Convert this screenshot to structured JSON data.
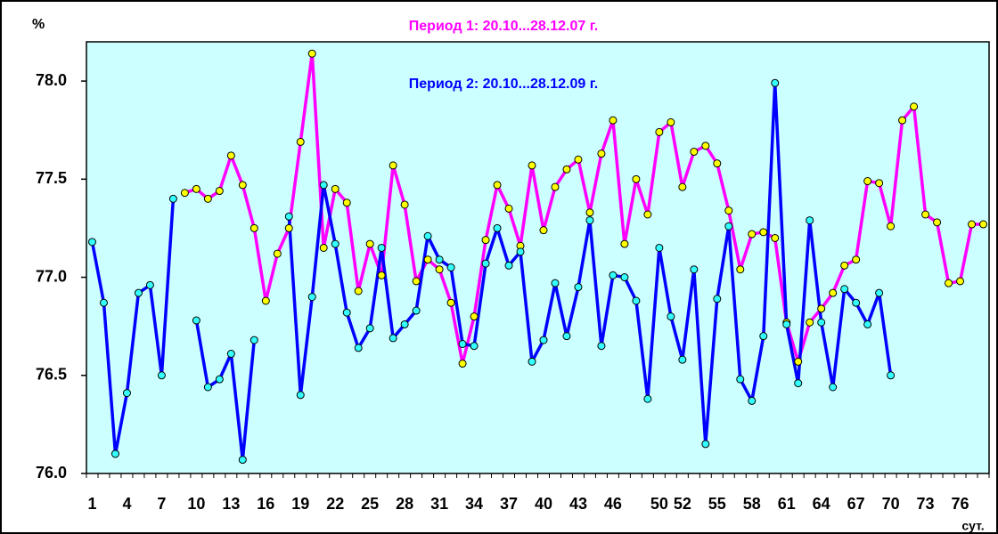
{
  "chart_data": {
    "type": "line",
    "y_unit_label": "%",
    "x_unit_label": "сут.",
    "categories": [
      "1",
      null,
      null,
      "4",
      null,
      null,
      "7",
      null,
      null,
      "10",
      null,
      null,
      "13",
      null,
      null,
      "16",
      null,
      null,
      "19",
      null,
      null,
      "22",
      null,
      null,
      "25",
      null,
      null,
      "28",
      null,
      null,
      "31",
      null,
      null,
      "34",
      null,
      null,
      "37",
      null,
      null,
      "40",
      null,
      null,
      "43",
      null,
      null,
      "46",
      null,
      null,
      null,
      "50",
      null,
      "52",
      null,
      null,
      "55",
      null,
      null,
      "58",
      null,
      null,
      "61",
      null,
      null,
      "64",
      null,
      null,
      "67",
      null,
      null,
      "70",
      null,
      null,
      "73",
      null,
      null,
      "76",
      null,
      null
    ],
    "series": [
      {
        "name": "Период 1: 20.10...28.12.07 г.",
        "color": "#ff00ff",
        "marker_color": "#ffff00",
        "values": [
          null,
          null,
          null,
          null,
          null,
          null,
          null,
          null,
          77.43,
          77.45,
          77.4,
          77.44,
          77.62,
          77.47,
          77.25,
          76.88,
          77.12,
          77.25,
          77.69,
          78.14,
          77.15,
          77.45,
          77.38,
          76.93,
          77.17,
          77.01,
          77.57,
          77.37,
          76.98,
          77.09,
          77.04,
          76.87,
          76.56,
          76.8,
          77.19,
          77.47,
          77.35,
          77.16,
          77.57,
          77.24,
          77.46,
          77.55,
          77.6,
          77.33,
          77.63,
          77.8,
          77.17,
          77.5,
          77.32,
          77.74,
          77.79,
          77.46,
          77.64,
          77.67,
          77.58,
          77.34,
          77.04,
          77.22,
          77.23,
          77.2,
          76.77,
          76.57,
          76.77,
          76.84,
          76.92,
          77.06,
          77.09,
          77.49,
          77.48,
          77.26,
          77.8,
          77.87,
          77.32,
          77.28,
          76.97,
          76.98,
          77.27,
          77.27
        ]
      },
      {
        "name": "Период 2: 20.10...28.12.09 г.",
        "color": "#0000ff",
        "marker_color": "#33ffff",
        "values": [
          77.18,
          76.87,
          76.1,
          76.41,
          76.92,
          76.96,
          76.5,
          77.4,
          null,
          76.78,
          76.44,
          76.48,
          76.61,
          76.07,
          76.68,
          null,
          null,
          77.31,
          76.4,
          76.9,
          77.47,
          77.17,
          76.82,
          76.64,
          76.74,
          77.15,
          76.69,
          76.76,
          76.83,
          77.21,
          77.09,
          77.05,
          76.66,
          76.65,
          77.07,
          77.25,
          77.06,
          77.13,
          76.57,
          76.68,
          76.97,
          76.7,
          76.95,
          77.29,
          76.65,
          77.01,
          77.0,
          76.88,
          76.38,
          77.15,
          76.8,
          76.58,
          77.04,
          76.15,
          76.89,
          77.26,
          76.48,
          76.37,
          76.7,
          77.99,
          76.76,
          76.46,
          77.29,
          76.77,
          76.44,
          76.94,
          76.87,
          76.76,
          76.92,
          76.5,
          null,
          null,
          null,
          null,
          null,
          null,
          null,
          null
        ]
      }
    ],
    "ylim": [
      76,
      78.2
    ],
    "yticks": [
      {
        "value": 76,
        "label": "76.0"
      },
      76.5,
      {
        "value": 77,
        "label": "77.0"
      },
      77.5,
      {
        "value": 78,
        "label": "78.0"
      }
    ],
    "plot_background": "#ccffff",
    "grid": false
  }
}
